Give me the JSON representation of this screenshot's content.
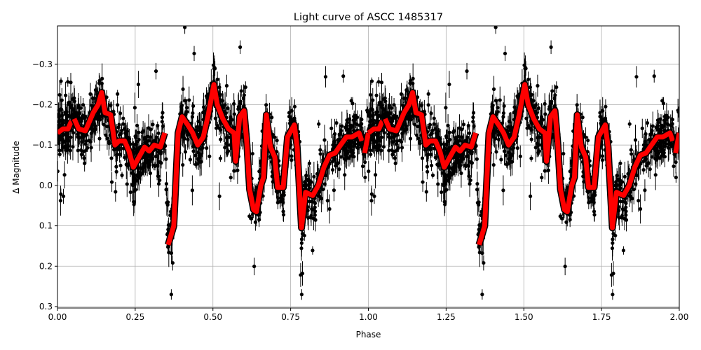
{
  "chart_data": {
    "type": "scatter",
    "title": "Light curve of ASCC 1485317",
    "xlabel": "Phase",
    "ylabel": "Δ Magnitude",
    "xlim": [
      0,
      2
    ],
    "ylim": [
      0.3035,
      -0.395
    ],
    "y_inverted": true,
    "grid": true,
    "xticks": [
      "0.00",
      "0.25",
      "0.50",
      "0.75",
      "1.00",
      "1.25",
      "1.50",
      "1.75",
      "2.00"
    ],
    "xtick_values": [
      0,
      0.25,
      0.5,
      0.75,
      1,
      1.25,
      1.5,
      1.75,
      2
    ],
    "yticks": [
      "−0.3",
      "−0.2",
      "−0.1",
      "0.0",
      "0.1",
      "0.2",
      "0.3"
    ],
    "ytick_values": [
      -0.3,
      -0.2,
      -0.1,
      0,
      0.1,
      0.2,
      0.3
    ],
    "observations": {
      "style": "black points with error bars",
      "color": "#000000"
    },
    "model_curve": {
      "color": "#ff0000",
      "outline": "#000000",
      "repeated_every_phase": 1,
      "segments": [
        [
          [
            0,
            -0.13
          ],
          [
            0.018,
            -0.14
          ],
          [
            0.034,
            -0.14
          ],
          [
            0.045,
            -0.16
          ]
        ],
        [
          [
            0.054,
            -0.165
          ],
          [
            0.068,
            -0.14
          ],
          [
            0.09,
            -0.135
          ],
          [
            0.115,
            -0.18
          ],
          [
            0.131,
            -0.2
          ],
          [
            0.142,
            -0.23
          ],
          [
            0.153,
            -0.18
          ],
          [
            0.171,
            -0.175
          ],
          [
            0.185,
            -0.1
          ],
          [
            0.198,
            -0.11
          ],
          [
            0.216,
            -0.11
          ],
          [
            0.23,
            -0.085
          ],
          [
            0.244,
            -0.045
          ],
          [
            0.262,
            -0.07
          ],
          [
            0.28,
            -0.095
          ],
          [
            0.295,
            -0.085
          ],
          [
            0.311,
            -0.1
          ],
          [
            0.331,
            -0.095
          ],
          [
            0.345,
            -0.13
          ]
        ],
        [
          [
            0.356,
            0.147
          ],
          [
            0.374,
            0.1
          ],
          [
            0.388,
            -0.13
          ],
          [
            0.401,
            -0.17
          ],
          [
            0.419,
            -0.15
          ],
          [
            0.435,
            -0.13
          ],
          [
            0.451,
            -0.1
          ],
          [
            0.469,
            -0.12
          ],
          [
            0.485,
            -0.175
          ],
          [
            0.503,
            -0.25
          ],
          [
            0.514,
            -0.2
          ],
          [
            0.532,
            -0.165
          ],
          [
            0.55,
            -0.14
          ],
          [
            0.568,
            -0.13
          ],
          [
            0.573,
            -0.06
          ],
          [
            0.586,
            -0.17
          ],
          [
            0.6,
            -0.185
          ],
          [
            0.609,
            -0.105
          ],
          [
            0.618,
            0.01
          ],
          [
            0.631,
            0.06
          ],
          [
            0.64,
            0.065
          ],
          [
            0.654,
            0.0
          ],
          [
            0.663,
            -0.02
          ],
          [
            0.672,
            -0.175
          ],
          [
            0.685,
            -0.095
          ],
          [
            0.699,
            -0.07
          ],
          [
            0.708,
            0.005
          ],
          [
            0.726,
            0.005
          ],
          [
            0.74,
            -0.12
          ],
          [
            0.762,
            -0.15
          ],
          [
            0.771,
            -0.095
          ],
          [
            0.785,
            0.105
          ],
          [
            0.798,
            0.017
          ],
          [
            0.821,
            0.025
          ],
          [
            0.839,
            0.0
          ],
          [
            0.857,
            -0.045
          ],
          [
            0.875,
            -0.075
          ],
          [
            0.893,
            -0.08
          ],
          [
            0.906,
            -0.095
          ],
          [
            0.929,
            -0.12
          ],
          [
            0.947,
            -0.12
          ],
          [
            0.97,
            -0.13
          ],
          [
            0.979,
            -0.11
          ]
        ],
        [
          [
            0.988,
            -0.08
          ],
          [
            1.0,
            -0.13
          ]
        ]
      ]
    }
  }
}
